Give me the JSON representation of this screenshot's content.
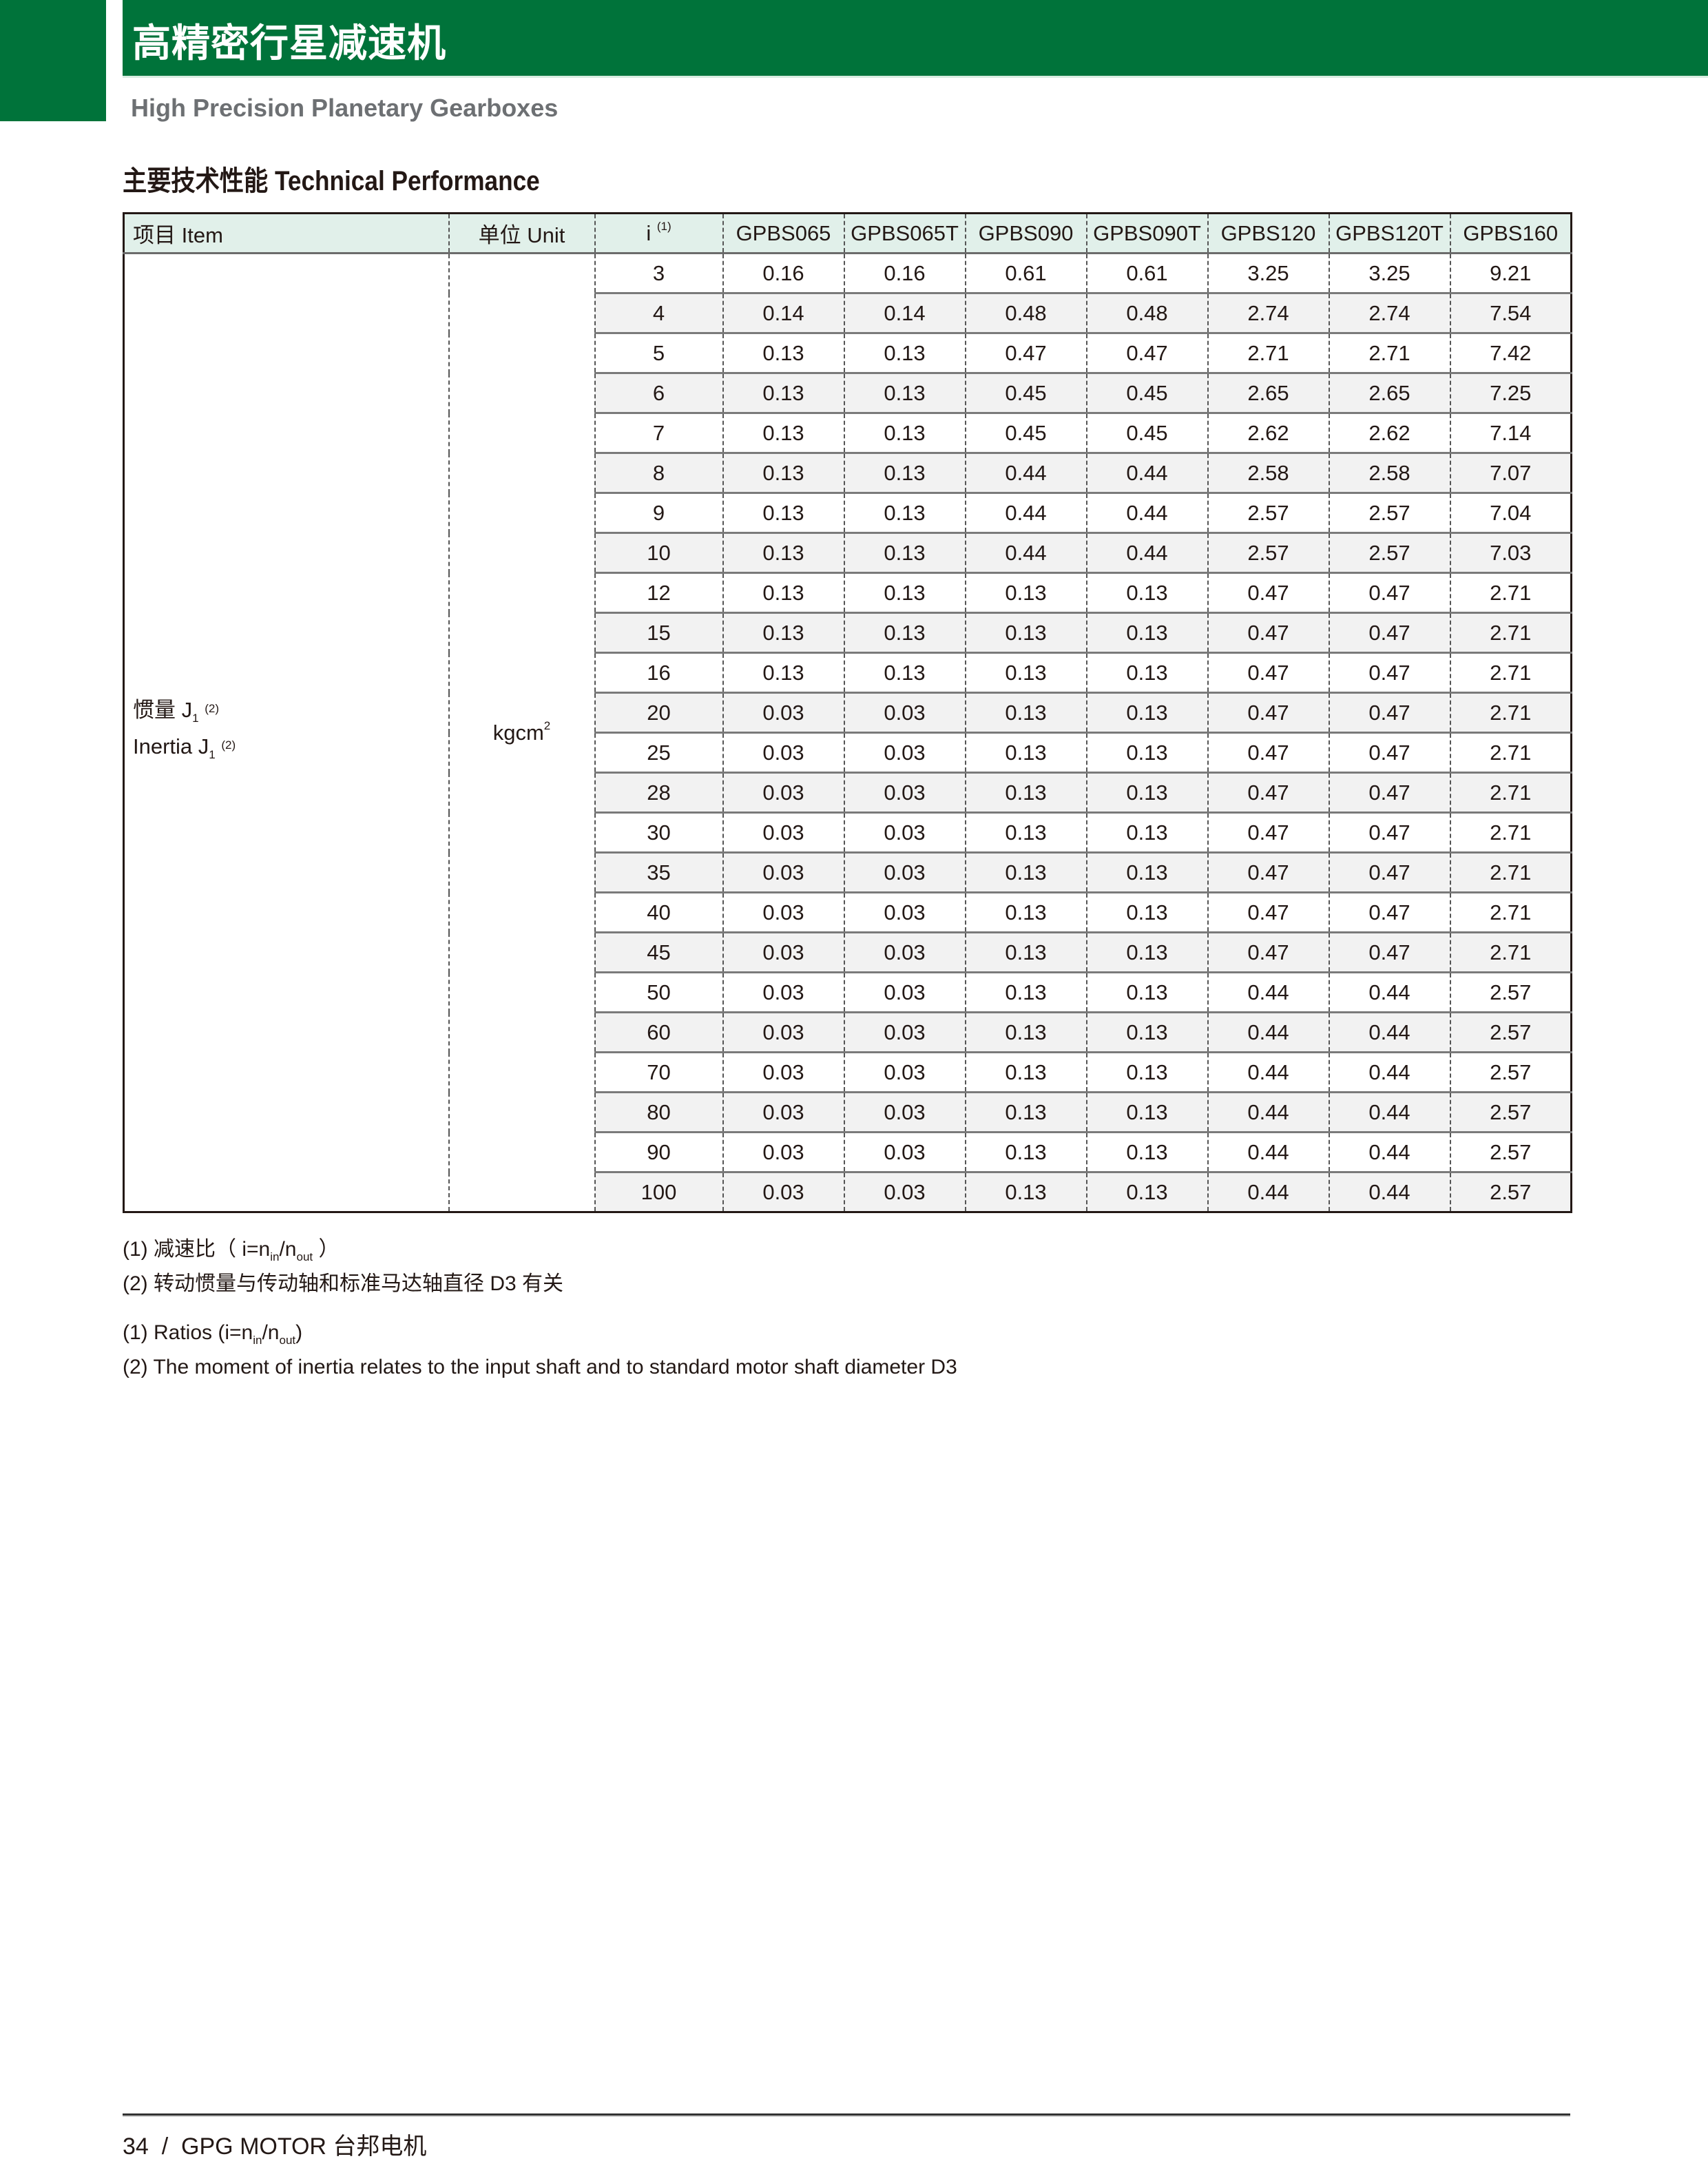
{
  "header": {
    "title_cn": "高精密行星减速机",
    "subtitle": "High Precision Planetary Gearboxes",
    "brand_color": "#00733a"
  },
  "section": {
    "title": "主要技术性能 Technical Performance"
  },
  "table": {
    "columns": {
      "item": "项目 Item",
      "unit": "单位 Unit",
      "ratio": "i",
      "ratio_note": "(1)",
      "models": [
        "GPBS065",
        "GPBS065T",
        "GPBS090",
        "GPBS090T",
        "GPBS120",
        "GPBS120T",
        "GPBS160"
      ]
    },
    "item_cn": "惯量 J",
    "item_en": "Inertia J",
    "item_sub": "1",
    "item_note": "(2)",
    "unit_base": "kgcm",
    "unit_exp": "2",
    "rows": [
      {
        "i": "3",
        "v": [
          "0.16",
          "0.16",
          "0.61",
          "0.61",
          "3.25",
          "3.25",
          "9.21"
        ]
      },
      {
        "i": "4",
        "v": [
          "0.14",
          "0.14",
          "0.48",
          "0.48",
          "2.74",
          "2.74",
          "7.54"
        ]
      },
      {
        "i": "5",
        "v": [
          "0.13",
          "0.13",
          "0.47",
          "0.47",
          "2.71",
          "2.71",
          "7.42"
        ]
      },
      {
        "i": "6",
        "v": [
          "0.13",
          "0.13",
          "0.45",
          "0.45",
          "2.65",
          "2.65",
          "7.25"
        ]
      },
      {
        "i": "7",
        "v": [
          "0.13",
          "0.13",
          "0.45",
          "0.45",
          "2.62",
          "2.62",
          "7.14"
        ]
      },
      {
        "i": "8",
        "v": [
          "0.13",
          "0.13",
          "0.44",
          "0.44",
          "2.58",
          "2.58",
          "7.07"
        ]
      },
      {
        "i": "9",
        "v": [
          "0.13",
          "0.13",
          "0.44",
          "0.44",
          "2.57",
          "2.57",
          "7.04"
        ]
      },
      {
        "i": "10",
        "v": [
          "0.13",
          "0.13",
          "0.44",
          "0.44",
          "2.57",
          "2.57",
          "7.03"
        ]
      },
      {
        "i": "12",
        "v": [
          "0.13",
          "0.13",
          "0.13",
          "0.13",
          "0.47",
          "0.47",
          "2.71"
        ]
      },
      {
        "i": "15",
        "v": [
          "0.13",
          "0.13",
          "0.13",
          "0.13",
          "0.47",
          "0.47",
          "2.71"
        ]
      },
      {
        "i": "16",
        "v": [
          "0.13",
          "0.13",
          "0.13",
          "0.13",
          "0.47",
          "0.47",
          "2.71"
        ]
      },
      {
        "i": "20",
        "v": [
          "0.03",
          "0.03",
          "0.13",
          "0.13",
          "0.47",
          "0.47",
          "2.71"
        ]
      },
      {
        "i": "25",
        "v": [
          "0.03",
          "0.03",
          "0.13",
          "0.13",
          "0.47",
          "0.47",
          "2.71"
        ]
      },
      {
        "i": "28",
        "v": [
          "0.03",
          "0.03",
          "0.13",
          "0.13",
          "0.47",
          "0.47",
          "2.71"
        ]
      },
      {
        "i": "30",
        "v": [
          "0.03",
          "0.03",
          "0.13",
          "0.13",
          "0.47",
          "0.47",
          "2.71"
        ]
      },
      {
        "i": "35",
        "v": [
          "0.03",
          "0.03",
          "0.13",
          "0.13",
          "0.47",
          "0.47",
          "2.71"
        ]
      },
      {
        "i": "40",
        "v": [
          "0.03",
          "0.03",
          "0.13",
          "0.13",
          "0.47",
          "0.47",
          "2.71"
        ]
      },
      {
        "i": "45",
        "v": [
          "0.03",
          "0.03",
          "0.13",
          "0.13",
          "0.47",
          "0.47",
          "2.71"
        ]
      },
      {
        "i": "50",
        "v": [
          "0.03",
          "0.03",
          "0.13",
          "0.13",
          "0.44",
          "0.44",
          "2.57"
        ]
      },
      {
        "i": "60",
        "v": [
          "0.03",
          "0.03",
          "0.13",
          "0.13",
          "0.44",
          "0.44",
          "2.57"
        ]
      },
      {
        "i": "70",
        "v": [
          "0.03",
          "0.03",
          "0.13",
          "0.13",
          "0.44",
          "0.44",
          "2.57"
        ]
      },
      {
        "i": "80",
        "v": [
          "0.03",
          "0.03",
          "0.13",
          "0.13",
          "0.44",
          "0.44",
          "2.57"
        ]
      },
      {
        "i": "90",
        "v": [
          "0.03",
          "0.03",
          "0.13",
          "0.13",
          "0.44",
          "0.44",
          "2.57"
        ]
      },
      {
        "i": "100",
        "v": [
          "0.03",
          "0.03",
          "0.13",
          "0.13",
          "0.44",
          "0.44",
          "2.57"
        ]
      }
    ]
  },
  "notes": {
    "cn1_a": "(1) 减速比（ i=n",
    "cn1_in": "in",
    "cn1_b": "/n",
    "cn1_out": "out",
    "cn1_c": " ）",
    "cn2": "(2) 转动惯量与传动轴和标准马达轴直径 D3 有关",
    "en1_a": "(1) Ratios (i=n",
    "en1_in": "in",
    "en1_b": "/n",
    "en1_out": "out",
    "en1_c": ")",
    "en2": "(2) The moment of inertia relates to the input shaft and to standard motor shaft diameter D3"
  },
  "footer": {
    "text": "34  /  GPG MOTOR 台邦电机"
  }
}
